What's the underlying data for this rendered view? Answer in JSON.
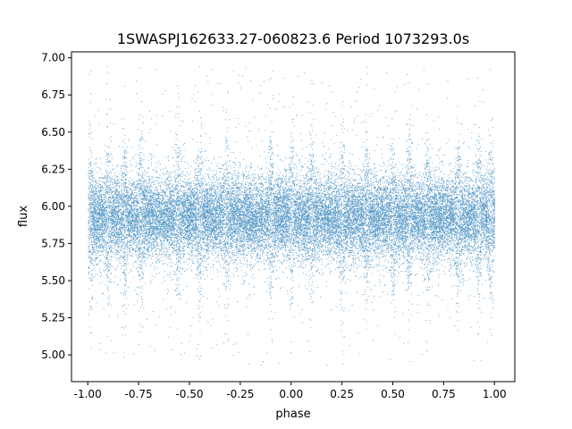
{
  "chart_data": {
    "type": "scatter",
    "title": "1SWASPJ162633.27-060823.6 Period 1073293.0s",
    "xlabel": "phase",
    "ylabel": "flux",
    "xlim": [
      -1.08,
      1.1
    ],
    "ylim": [
      4.82,
      7.04
    ],
    "xticks": [
      "-1.00",
      "-0.75",
      "-0.50",
      "-0.25",
      "0.00",
      "0.25",
      "0.50",
      "0.75",
      "1.00"
    ],
    "yticks": [
      "5.00",
      "5.25",
      "5.50",
      "5.75",
      "6.00",
      "6.25",
      "6.50",
      "6.75",
      "7.00"
    ],
    "grid": false,
    "legend": "none",
    "point_color": "#1f77b4",
    "series": [
      {
        "x_range": [
          -1.0,
          1.0
        ],
        "core_center": 5.93,
        "core_spread": 0.13,
        "band_range": [
          5.55,
          6.3
        ],
        "outlier_range": [
          4.93,
          6.95
        ],
        "n_points": 30000
      }
    ]
  }
}
